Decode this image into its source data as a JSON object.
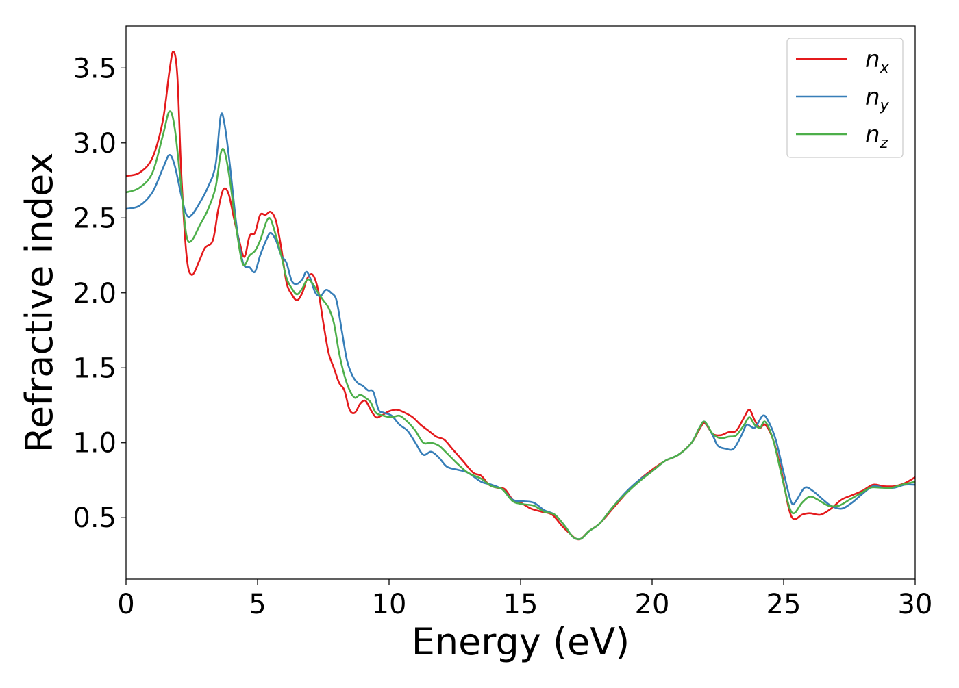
{
  "chart_data": {
    "type": "line",
    "title": "",
    "xlabel": "Energy (eV)",
    "ylabel": "Refractive index",
    "xlim": [
      0,
      30
    ],
    "ylim": [
      0.09,
      3.78
    ],
    "xticks": [
      0,
      5,
      10,
      15,
      20,
      25,
      30
    ],
    "xtick_labels": [
      "0",
      "5",
      "10",
      "15",
      "20",
      "25",
      "30"
    ],
    "yticks": [
      0.5,
      1.0,
      1.5,
      2.0,
      2.5,
      3.0,
      3.5
    ],
    "ytick_labels": [
      "0.5",
      "1.0",
      "1.5",
      "2.0",
      "2.5",
      "3.0",
      "3.5"
    ],
    "grid": false,
    "legend_position": "top-right",
    "series": [
      {
        "name": "n_x",
        "label_base": "n",
        "label_sub": "x",
        "color": "#e41a1c",
        "points": [
          [
            0,
            2.78
          ],
          [
            0.5,
            2.8
          ],
          [
            1.0,
            2.9
          ],
          [
            1.4,
            3.15
          ],
          [
            1.65,
            3.48
          ],
          [
            1.8,
            3.61
          ],
          [
            1.95,
            3.45
          ],
          [
            2.1,
            2.8
          ],
          [
            2.3,
            2.25
          ],
          [
            2.5,
            2.12
          ],
          [
            2.8,
            2.22
          ],
          [
            3.0,
            2.3
          ],
          [
            3.3,
            2.35
          ],
          [
            3.5,
            2.55
          ],
          [
            3.7,
            2.69
          ],
          [
            3.9,
            2.66
          ],
          [
            4.1,
            2.5
          ],
          [
            4.3,
            2.35
          ],
          [
            4.5,
            2.24
          ],
          [
            4.7,
            2.38
          ],
          [
            4.9,
            2.4
          ],
          [
            5.1,
            2.52
          ],
          [
            5.3,
            2.52
          ],
          [
            5.5,
            2.54
          ],
          [
            5.7,
            2.48
          ],
          [
            5.9,
            2.3
          ],
          [
            6.1,
            2.07
          ],
          [
            6.3,
            1.99
          ],
          [
            6.5,
            1.95
          ],
          [
            6.7,
            2.0
          ],
          [
            6.9,
            2.1
          ],
          [
            7.1,
            2.12
          ],
          [
            7.3,
            2.02
          ],
          [
            7.5,
            1.8
          ],
          [
            7.7,
            1.6
          ],
          [
            7.9,
            1.5
          ],
          [
            8.1,
            1.4
          ],
          [
            8.3,
            1.35
          ],
          [
            8.5,
            1.22
          ],
          [
            8.7,
            1.2
          ],
          [
            8.9,
            1.26
          ],
          [
            9.1,
            1.28
          ],
          [
            9.3,
            1.22
          ],
          [
            9.5,
            1.17
          ],
          [
            9.7,
            1.18
          ],
          [
            10.0,
            1.21
          ],
          [
            10.3,
            1.22
          ],
          [
            10.6,
            1.2
          ],
          [
            10.9,
            1.17
          ],
          [
            11.2,
            1.12
          ],
          [
            11.5,
            1.08
          ],
          [
            11.8,
            1.04
          ],
          [
            12.1,
            1.02
          ],
          [
            12.4,
            0.96
          ],
          [
            12.8,
            0.88
          ],
          [
            13.2,
            0.8
          ],
          [
            13.5,
            0.78
          ],
          [
            13.8,
            0.72
          ],
          [
            14.1,
            0.7
          ],
          [
            14.4,
            0.69
          ],
          [
            14.7,
            0.62
          ],
          [
            15.0,
            0.6
          ],
          [
            15.4,
            0.56
          ],
          [
            15.8,
            0.54
          ],
          [
            16.2,
            0.52
          ],
          [
            16.6,
            0.44
          ],
          [
            16.9,
            0.39
          ],
          [
            17.1,
            0.36
          ],
          [
            17.3,
            0.36
          ],
          [
            17.6,
            0.41
          ],
          [
            18.0,
            0.46
          ],
          [
            18.5,
            0.56
          ],
          [
            19.0,
            0.66
          ],
          [
            19.5,
            0.75
          ],
          [
            20.0,
            0.82
          ],
          [
            20.5,
            0.88
          ],
          [
            21.0,
            0.92
          ],
          [
            21.5,
            1.0
          ],
          [
            21.8,
            1.09
          ],
          [
            22.0,
            1.13
          ],
          [
            22.3,
            1.06
          ],
          [
            22.6,
            1.05
          ],
          [
            22.9,
            1.07
          ],
          [
            23.2,
            1.08
          ],
          [
            23.5,
            1.17
          ],
          [
            23.7,
            1.22
          ],
          [
            23.9,
            1.15
          ],
          [
            24.1,
            1.1
          ],
          [
            24.3,
            1.12
          ],
          [
            24.6,
            1.02
          ],
          [
            24.9,
            0.82
          ],
          [
            25.2,
            0.56
          ],
          [
            25.4,
            0.49
          ],
          [
            25.7,
            0.52
          ],
          [
            26.0,
            0.53
          ],
          [
            26.4,
            0.52
          ],
          [
            26.8,
            0.56
          ],
          [
            27.2,
            0.62
          ],
          [
            27.6,
            0.65
          ],
          [
            28.0,
            0.68
          ],
          [
            28.4,
            0.72
          ],
          [
            28.8,
            0.71
          ],
          [
            29.2,
            0.71
          ],
          [
            29.6,
            0.73
          ],
          [
            30.0,
            0.77
          ]
        ]
      },
      {
        "name": "n_y",
        "label_base": "n",
        "label_sub": "y",
        "color": "#377eb8",
        "points": [
          [
            0,
            2.56
          ],
          [
            0.5,
            2.58
          ],
          [
            1.0,
            2.67
          ],
          [
            1.4,
            2.83
          ],
          [
            1.65,
            2.92
          ],
          [
            1.85,
            2.85
          ],
          [
            2.1,
            2.65
          ],
          [
            2.3,
            2.52
          ],
          [
            2.5,
            2.52
          ],
          [
            2.8,
            2.6
          ],
          [
            3.1,
            2.7
          ],
          [
            3.4,
            2.85
          ],
          [
            3.6,
            3.18
          ],
          [
            3.75,
            3.12
          ],
          [
            3.95,
            2.85
          ],
          [
            4.2,
            2.45
          ],
          [
            4.45,
            2.2
          ],
          [
            4.7,
            2.17
          ],
          [
            4.9,
            2.14
          ],
          [
            5.1,
            2.25
          ],
          [
            5.35,
            2.36
          ],
          [
            5.5,
            2.4
          ],
          [
            5.7,
            2.35
          ],
          [
            5.9,
            2.25
          ],
          [
            6.1,
            2.2
          ],
          [
            6.3,
            2.08
          ],
          [
            6.5,
            2.06
          ],
          [
            6.7,
            2.09
          ],
          [
            6.85,
            2.14
          ],
          [
            7.0,
            2.1
          ],
          [
            7.2,
            2.0
          ],
          [
            7.4,
            1.98
          ],
          [
            7.6,
            2.02
          ],
          [
            7.8,
            2.0
          ],
          [
            8.0,
            1.95
          ],
          [
            8.2,
            1.75
          ],
          [
            8.4,
            1.55
          ],
          [
            8.6,
            1.45
          ],
          [
            8.8,
            1.4
          ],
          [
            9.0,
            1.38
          ],
          [
            9.2,
            1.35
          ],
          [
            9.4,
            1.34
          ],
          [
            9.6,
            1.22
          ],
          [
            9.8,
            1.2
          ],
          [
            10.1,
            1.18
          ],
          [
            10.4,
            1.12
          ],
          [
            10.7,
            1.08
          ],
          [
            11.0,
            1.0
          ],
          [
            11.3,
            0.92
          ],
          [
            11.6,
            0.94
          ],
          [
            11.9,
            0.9
          ],
          [
            12.2,
            0.84
          ],
          [
            12.6,
            0.82
          ],
          [
            13.0,
            0.8
          ],
          [
            13.5,
            0.74
          ],
          [
            13.9,
            0.72
          ],
          [
            14.3,
            0.69
          ],
          [
            14.7,
            0.62
          ],
          [
            15.1,
            0.61
          ],
          [
            15.5,
            0.6
          ],
          [
            15.9,
            0.55
          ],
          [
            16.3,
            0.52
          ],
          [
            16.7,
            0.44
          ],
          [
            17.0,
            0.37
          ],
          [
            17.3,
            0.36
          ],
          [
            17.6,
            0.41
          ],
          [
            18.0,
            0.46
          ],
          [
            18.5,
            0.57
          ],
          [
            19.0,
            0.67
          ],
          [
            19.5,
            0.75
          ],
          [
            20.0,
            0.81
          ],
          [
            20.5,
            0.88
          ],
          [
            21.0,
            0.92
          ],
          [
            21.5,
            1.0
          ],
          [
            21.8,
            1.1
          ],
          [
            22.0,
            1.14
          ],
          [
            22.3,
            1.05
          ],
          [
            22.5,
            0.98
          ],
          [
            22.8,
            0.96
          ],
          [
            23.1,
            0.96
          ],
          [
            23.4,
            1.05
          ],
          [
            23.6,
            1.12
          ],
          [
            23.9,
            1.1
          ],
          [
            24.2,
            1.18
          ],
          [
            24.4,
            1.15
          ],
          [
            24.7,
            1.02
          ],
          [
            25.0,
            0.8
          ],
          [
            25.3,
            0.6
          ],
          [
            25.5,
            0.62
          ],
          [
            25.8,
            0.7
          ],
          [
            26.1,
            0.68
          ],
          [
            26.5,
            0.62
          ],
          [
            26.8,
            0.58
          ],
          [
            27.2,
            0.56
          ],
          [
            27.6,
            0.6
          ],
          [
            28.0,
            0.66
          ],
          [
            28.4,
            0.71
          ],
          [
            28.8,
            0.7
          ],
          [
            29.2,
            0.7
          ],
          [
            29.6,
            0.72
          ],
          [
            30.0,
            0.72
          ]
        ]
      },
      {
        "name": "n_z",
        "label_base": "n",
        "label_sub": "z",
        "color": "#4daf4a",
        "points": [
          [
            0,
            2.67
          ],
          [
            0.5,
            2.7
          ],
          [
            1.0,
            2.8
          ],
          [
            1.4,
            3.05
          ],
          [
            1.65,
            3.21
          ],
          [
            1.85,
            3.1
          ],
          [
            2.1,
            2.7
          ],
          [
            2.3,
            2.38
          ],
          [
            2.5,
            2.35
          ],
          [
            2.8,
            2.45
          ],
          [
            3.1,
            2.55
          ],
          [
            3.4,
            2.7
          ],
          [
            3.6,
            2.93
          ],
          [
            3.75,
            2.94
          ],
          [
            3.95,
            2.75
          ],
          [
            4.2,
            2.42
          ],
          [
            4.45,
            2.19
          ],
          [
            4.7,
            2.25
          ],
          [
            4.9,
            2.28
          ],
          [
            5.1,
            2.35
          ],
          [
            5.35,
            2.48
          ],
          [
            5.5,
            2.49
          ],
          [
            5.7,
            2.38
          ],
          [
            5.9,
            2.25
          ],
          [
            6.1,
            2.1
          ],
          [
            6.3,
            2.03
          ],
          [
            6.5,
            1.99
          ],
          [
            6.7,
            2.03
          ],
          [
            6.9,
            2.09
          ],
          [
            7.1,
            2.06
          ],
          [
            7.3,
            2.0
          ],
          [
            7.5,
            1.95
          ],
          [
            7.7,
            1.9
          ],
          [
            7.9,
            1.8
          ],
          [
            8.1,
            1.6
          ],
          [
            8.3,
            1.45
          ],
          [
            8.5,
            1.35
          ],
          [
            8.7,
            1.3
          ],
          [
            8.9,
            1.32
          ],
          [
            9.1,
            1.3
          ],
          [
            9.3,
            1.27
          ],
          [
            9.5,
            1.2
          ],
          [
            9.8,
            1.18
          ],
          [
            10.1,
            1.17
          ],
          [
            10.4,
            1.18
          ],
          [
            10.7,
            1.14
          ],
          [
            11.0,
            1.08
          ],
          [
            11.3,
            1.0
          ],
          [
            11.6,
            1.0
          ],
          [
            11.9,
            0.98
          ],
          [
            12.2,
            0.93
          ],
          [
            12.6,
            0.86
          ],
          [
            13.0,
            0.8
          ],
          [
            13.5,
            0.76
          ],
          [
            13.9,
            0.71
          ],
          [
            14.3,
            0.69
          ],
          [
            14.7,
            0.61
          ],
          [
            15.1,
            0.59
          ],
          [
            15.5,
            0.58
          ],
          [
            15.9,
            0.54
          ],
          [
            16.3,
            0.52
          ],
          [
            16.7,
            0.44
          ],
          [
            17.0,
            0.37
          ],
          [
            17.3,
            0.36
          ],
          [
            17.6,
            0.41
          ],
          [
            18.0,
            0.46
          ],
          [
            18.5,
            0.57
          ],
          [
            19.0,
            0.66
          ],
          [
            19.5,
            0.74
          ],
          [
            20.0,
            0.81
          ],
          [
            20.5,
            0.88
          ],
          [
            21.0,
            0.92
          ],
          [
            21.5,
            1.0
          ],
          [
            21.8,
            1.1
          ],
          [
            22.0,
            1.14
          ],
          [
            22.3,
            1.06
          ],
          [
            22.6,
            1.03
          ],
          [
            22.9,
            1.04
          ],
          [
            23.2,
            1.05
          ],
          [
            23.5,
            1.12
          ],
          [
            23.7,
            1.17
          ],
          [
            23.9,
            1.12
          ],
          [
            24.1,
            1.1
          ],
          [
            24.3,
            1.14
          ],
          [
            24.6,
            1.02
          ],
          [
            24.9,
            0.8
          ],
          [
            25.2,
            0.58
          ],
          [
            25.4,
            0.53
          ],
          [
            25.7,
            0.6
          ],
          [
            26.0,
            0.64
          ],
          [
            26.3,
            0.62
          ],
          [
            26.7,
            0.58
          ],
          [
            27.1,
            0.58
          ],
          [
            27.5,
            0.62
          ],
          [
            27.9,
            0.66
          ],
          [
            28.3,
            0.7
          ],
          [
            28.7,
            0.7
          ],
          [
            29.1,
            0.7
          ],
          [
            29.5,
            0.72
          ],
          [
            30.0,
            0.74
          ]
        ]
      }
    ]
  }
}
